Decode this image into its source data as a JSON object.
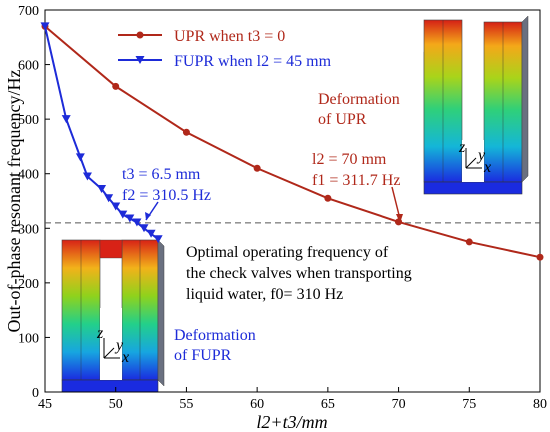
{
  "chart_data": {
    "type": "line",
    "xlabel": "l2+t3/mm",
    "ylabel": "Out-of-phase resonant frequency/Hz",
    "xlim": [
      45,
      80
    ],
    "ylim": [
      0,
      700
    ],
    "xticks": [
      45,
      50,
      55,
      60,
      65,
      70,
      75,
      80
    ],
    "yticks": [
      0,
      100,
      200,
      300,
      400,
      500,
      600,
      700
    ],
    "grid": false,
    "legend_position": "top-left",
    "series": [
      {
        "name": "UPR when t3 = 0",
        "color": "#b0281a",
        "marker": "circle",
        "x": [
          45,
          50,
          55,
          60,
          65,
          70,
          75,
          80
        ],
        "y": [
          670,
          560,
          476,
          410,
          355,
          311.7,
          275,
          247
        ]
      },
      {
        "name": "FUPR when l2 = 45 mm",
        "color": "#1d2bd8",
        "marker": "triangle-down",
        "x": [
          45,
          46.5,
          47.5,
          48,
          49,
          49.5,
          50,
          50.5,
          51,
          51.5,
          52,
          52.5,
          53
        ],
        "y": [
          670,
          500,
          430,
          395,
          372,
          355,
          340,
          325,
          318,
          310.5,
          300,
          290,
          280
        ]
      }
    ],
    "reference_line": {
      "y": 310,
      "color": "#555555",
      "style": "dashed"
    },
    "annotations": {
      "fupr_point_t": "t3 = 6.5 mm",
      "fupr_point_f": "f2 = 310.5 Hz",
      "upr_point_l": "l2 = 70 mm",
      "upr_point_f": "f1 = 311.7 Hz",
      "deformation_upr": [
        "Deformation",
        "of UPR"
      ],
      "deformation_fupr": [
        "Deformation",
        "of FUPR"
      ],
      "optimal_text": [
        "Optimal operating frequency of",
        "the check valves when transporting",
        "liquid water, f0= 310 Hz"
      ]
    }
  }
}
